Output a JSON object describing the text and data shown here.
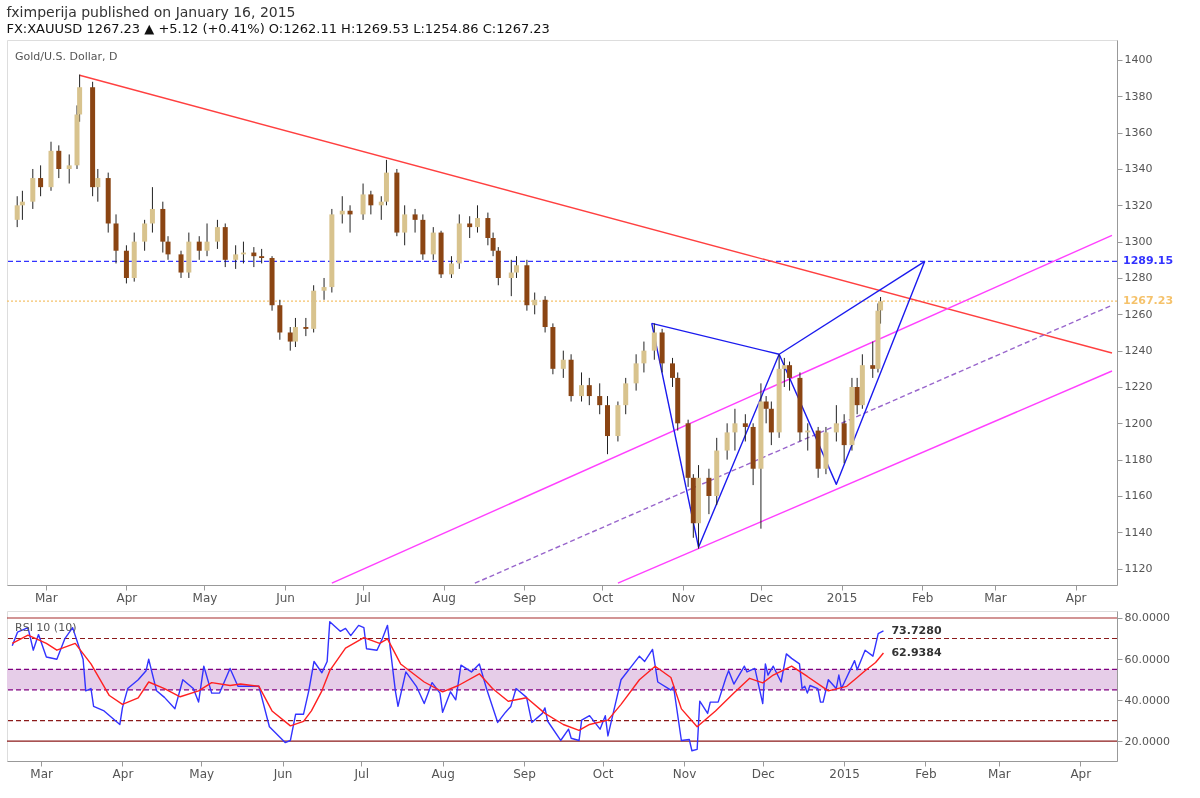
{
  "chart_data": [
    {
      "type": "candlestick",
      "title": "Gold/U.S. Dollar, D",
      "subtitle": "fximperija published on January 16, 2015",
      "annotations": [
        "FX:XAUUSD 1267.23 ▲ +5.12 (+0.41%) O:1262.11 H:1269.53 L:1254.86 C:1267.23"
      ],
      "x": [
        "2014-02-18",
        "2014-02-20",
        "2014-02-24",
        "2014-02-27",
        "2014-03-03",
        "2014-03-06",
        "2014-03-10",
        "2014-03-13",
        "2014-03-14",
        "2014-03-19",
        "2014-03-21",
        "2014-03-25",
        "2014-03-28",
        "2014-04-01",
        "2014-04-04",
        "2014-04-08",
        "2014-04-11",
        "2014-04-15",
        "2014-04-17",
        "2014-04-22",
        "2014-04-25",
        "2014-04-29",
        "2014-05-02",
        "2014-05-06",
        "2014-05-09",
        "2014-05-13",
        "2014-05-16",
        "2014-05-20",
        "2014-05-23",
        "2014-05-27",
        "2014-05-30",
        "2014-06-03",
        "2014-06-05",
        "2014-06-09",
        "2014-06-12",
        "2014-06-16",
        "2014-06-19",
        "2014-06-23",
        "2014-06-26",
        "2014-07-01",
        "2014-07-04",
        "2014-07-08",
        "2014-07-10",
        "2014-07-14",
        "2014-07-17",
        "2014-07-21",
        "2014-07-24",
        "2014-07-28",
        "2014-07-31",
        "2014-08-04",
        "2014-08-07",
        "2014-08-11",
        "2014-08-14",
        "2014-08-18",
        "2014-08-20",
        "2014-08-22",
        "2014-08-27",
        "2014-08-29",
        "2014-09-02",
        "2014-09-05",
        "2014-09-09",
        "2014-09-12",
        "2014-09-16",
        "2014-09-19",
        "2014-09-23",
        "2014-09-26",
        "2014-09-30",
        "2014-10-03",
        "2014-10-07",
        "2014-10-10",
        "2014-10-14",
        "2014-10-17",
        "2014-10-21",
        "2014-10-24",
        "2014-10-28",
        "2014-10-30",
        "2014-11-03",
        "2014-11-05",
        "2014-11-07",
        "2014-11-11",
        "2014-11-14",
        "2014-11-18",
        "2014-11-21",
        "2014-11-25",
        "2014-11-28",
        "2014-12-01",
        "2014-12-03",
        "2014-12-05",
        "2014-12-08",
        "2014-12-10",
        "2014-12-12",
        "2014-12-16",
        "2014-12-19",
        "2014-12-23",
        "2014-12-26",
        "2014-12-30",
        "2015-01-02",
        "2015-01-05",
        "2015-01-07",
        "2015-01-09",
        "2015-01-13",
        "2015-01-15",
        "2015-01-16"
      ],
      "ohlc": [
        [
          1312,
          1325,
          1308,
          1320
        ],
        [
          1320,
          1328,
          1312,
          1322
        ],
        [
          1322,
          1340,
          1318,
          1335
        ],
        [
          1335,
          1342,
          1325,
          1330
        ],
        [
          1330,
          1355,
          1328,
          1350
        ],
        [
          1350,
          1353,
          1335,
          1340
        ],
        [
          1340,
          1348,
          1332,
          1342
        ],
        [
          1342,
          1375,
          1340,
          1370
        ],
        [
          1370,
          1392,
          1366,
          1385
        ],
        [
          1385,
          1388,
          1325,
          1330
        ],
        [
          1330,
          1340,
          1322,
          1335
        ],
        [
          1335,
          1338,
          1305,
          1310
        ],
        [
          1310,
          1315,
          1288,
          1295
        ],
        [
          1295,
          1298,
          1277,
          1280
        ],
        [
          1280,
          1305,
          1278,
          1300
        ],
        [
          1300,
          1312,
          1295,
          1310
        ],
        [
          1310,
          1330,
          1305,
          1318
        ],
        [
          1318,
          1322,
          1294,
          1300
        ],
        [
          1300,
          1303,
          1290,
          1293
        ],
        [
          1293,
          1295,
          1280,
          1283
        ],
        [
          1283,
          1305,
          1280,
          1300
        ],
        [
          1300,
          1303,
          1290,
          1295
        ],
        [
          1295,
          1310,
          1292,
          1300
        ],
        [
          1300,
          1312,
          1296,
          1308
        ],
        [
          1308,
          1310,
          1286,
          1290
        ],
        [
          1290,
          1298,
          1285,
          1293
        ],
        [
          1293,
          1300,
          1288,
          1294
        ],
        [
          1294,
          1297,
          1286,
          1292
        ],
        [
          1292,
          1296,
          1288,
          1291
        ],
        [
          1291,
          1292,
          1262,
          1265
        ],
        [
          1265,
          1268,
          1246,
          1250
        ],
        [
          1250,
          1253,
          1240,
          1245
        ],
        [
          1245,
          1258,
          1242,
          1253
        ],
        [
          1253,
          1258,
          1248,
          1252
        ],
        [
          1252,
          1276,
          1250,
          1273
        ],
        [
          1273,
          1280,
          1268,
          1275
        ],
        [
          1275,
          1318,
          1272,
          1315
        ],
        [
          1315,
          1325,
          1310,
          1317
        ],
        [
          1317,
          1320,
          1305,
          1315
        ],
        [
          1315,
          1332,
          1312,
          1326
        ],
        [
          1326,
          1328,
          1315,
          1320
        ],
        [
          1320,
          1325,
          1312,
          1322
        ],
        [
          1322,
          1345,
          1320,
          1338
        ],
        [
          1338,
          1340,
          1303,
          1305
        ],
        [
          1305,
          1320,
          1298,
          1315
        ],
        [
          1315,
          1318,
          1305,
          1312
        ],
        [
          1312,
          1315,
          1290,
          1293
        ],
        [
          1293,
          1308,
          1290,
          1305
        ],
        [
          1305,
          1306,
          1280,
          1282
        ],
        [
          1282,
          1292,
          1280,
          1288
        ],
        [
          1288,
          1315,
          1285,
          1310
        ],
        [
          1310,
          1314,
          1302,
          1308
        ],
        [
          1308,
          1320,
          1305,
          1313
        ],
        [
          1313,
          1316,
          1298,
          1302
        ],
        [
          1302,
          1305,
          1292,
          1295
        ],
        [
          1295,
          1297,
          1276,
          1280
        ],
        [
          1280,
          1290,
          1270,
          1283
        ],
        [
          1283,
          1292,
          1280,
          1287
        ],
        [
          1287,
          1290,
          1262,
          1265
        ],
        [
          1265,
          1272,
          1260,
          1268
        ],
        [
          1268,
          1270,
          1250,
          1253
        ],
        [
          1253,
          1255,
          1227,
          1230
        ],
        [
          1230,
          1240,
          1225,
          1235
        ],
        [
          1235,
          1238,
          1212,
          1215
        ],
        [
          1215,
          1228,
          1212,
          1221
        ],
        [
          1221,
          1225,
          1210,
          1215
        ],
        [
          1215,
          1222,
          1205,
          1210
        ],
        [
          1210,
          1215,
          1183,
          1193
        ],
        [
          1193,
          1212,
          1190,
          1210
        ],
        [
          1210,
          1225,
          1205,
          1222
        ],
        [
          1222,
          1238,
          1218,
          1233
        ],
        [
          1233,
          1245,
          1228,
          1240
        ],
        [
          1240,
          1255,
          1235,
          1250
        ],
        [
          1250,
          1252,
          1228,
          1233
        ],
        [
          1233,
          1236,
          1220,
          1225
        ],
        [
          1225,
          1228,
          1196,
          1200
        ],
        [
          1200,
          1202,
          1165,
          1170
        ],
        [
          1170,
          1172,
          1137,
          1145
        ],
        [
          1145,
          1177,
          1131,
          1170
        ],
        [
          1170,
          1175,
          1150,
          1160
        ],
        [
          1160,
          1192,
          1155,
          1185
        ],
        [
          1185,
          1200,
          1180,
          1195
        ],
        [
          1195,
          1208,
          1185,
          1200
        ],
        [
          1200,
          1205,
          1190,
          1198
        ],
        [
          1198,
          1200,
          1166,
          1175
        ],
        [
          1175,
          1222,
          1142,
          1212
        ],
        [
          1212,
          1215,
          1200,
          1208
        ],
        [
          1208,
          1212,
          1188,
          1195
        ],
        [
          1195,
          1238,
          1192,
          1230
        ],
        [
          1230,
          1236,
          1220,
          1232
        ],
        [
          1232,
          1234,
          1218,
          1225
        ],
        [
          1225,
          1228,
          1190,
          1195
        ],
        [
          1195,
          1200,
          1185,
          1196
        ],
        [
          1196,
          1198,
          1170,
          1175
        ],
        [
          1175,
          1198,
          1172,
          1195
        ],
        [
          1195,
          1210,
          1190,
          1200
        ],
        [
          1200,
          1205,
          1178,
          1188
        ],
        [
          1188,
          1225,
          1185,
          1220
        ],
        [
          1220,
          1225,
          1205,
          1210
        ],
        [
          1210,
          1238,
          1208,
          1232
        ],
        [
          1232,
          1245,
          1225,
          1230
        ],
        [
          1230,
          1266,
          1228,
          1262
        ],
        [
          1262.11,
          1269.53,
          1254.86,
          1267.23
        ]
      ],
      "colors": [
        "#d8c38e",
        "#d8c38e",
        "#d8c38e",
        "#8b4513",
        "#d8c38e",
        "#8b4513",
        "#d8c38e",
        "#d8c38e",
        "#d8c38e",
        "#8b4513",
        "#d8c38e",
        "#8b4513",
        "#8b4513",
        "#8b4513",
        "#d8c38e",
        "#d8c38e",
        "#d8c38e",
        "#8b4513",
        "#8b4513",
        "#8b4513",
        "#d8c38e",
        "#8b4513",
        "#d8c38e",
        "#d8c38e",
        "#8b4513",
        "#d8c38e",
        "#d8c38e",
        "#8b4513",
        "#8b4513",
        "#8b4513",
        "#8b4513",
        "#8b4513",
        "#d8c38e",
        "#8b4513",
        "#d8c38e",
        "#d8c38e",
        "#d8c38e",
        "#d8c38e",
        "#8b4513",
        "#d8c38e",
        "#8b4513",
        "#d8c38e",
        "#d8c38e",
        "#8b4513",
        "#d8c38e",
        "#8b4513",
        "#8b4513",
        "#d8c38e",
        "#8b4513",
        "#d8c38e",
        "#d8c38e",
        "#8b4513",
        "#d8c38e",
        "#8b4513",
        "#8b4513",
        "#8b4513",
        "#d8c38e",
        "#d8c38e",
        "#8b4513",
        "#d8c38e",
        "#8b4513",
        "#8b4513",
        "#d8c38e",
        "#8b4513",
        "#d8c38e",
        "#8b4513",
        "#8b4513",
        "#8b4513",
        "#d8c38e",
        "#d8c38e",
        "#d8c38e",
        "#d8c38e",
        "#d8c38e",
        "#8b4513",
        "#8b4513",
        "#8b4513",
        "#8b4513",
        "#8b4513",
        "#d8c38e",
        "#8b4513",
        "#d8c38e",
        "#d8c38e",
        "#d8c38e",
        "#8b4513",
        "#8b4513",
        "#d8c38e",
        "#8b4513",
        "#8b4513",
        "#d8c38e",
        "#d8c38e",
        "#8b4513",
        "#8b4513",
        "#d8c38e",
        "#8b4513",
        "#d8c38e",
        "#d8c38e",
        "#8b4513",
        "#d8c38e",
        "#8b4513",
        "#d8c38e",
        "#8b4513",
        "#d8c38e",
        "#d8c38e"
      ],
      "series": [
        {
          "type": "line",
          "color": "#ff4040",
          "x": [
            "2014-03-14",
            "2015-04-15"
          ],
          "values": [
            1391.6,
            1238.7
          ]
        },
        {
          "type": "line",
          "color": "#ff40ff",
          "x": [
            "2014-06-19",
            "2015-04-15"
          ],
          "values": [
            1112,
            1303.5
          ]
        },
        {
          "type": "line",
          "color": "#9966cc",
          "line_style": "dashed",
          "x": [
            "2014-08-13",
            "2015-04-15"
          ],
          "values": [
            1112,
            1265
          ]
        },
        {
          "type": "line",
          "color": "#ff40ff",
          "x": [
            "2014-10-07",
            "2015-04-15"
          ],
          "values": [
            1112,
            1228.8
          ]
        },
        {
          "type": "line",
          "color": "#1a1aee",
          "x": [
            "2014-10-20",
            "2014-11-07",
            "2014-12-08"
          ],
          "values": [
            1255,
            1131.8,
            1238
          ]
        },
        {
          "type": "line",
          "color": "#1a1aee",
          "x": [
            "2014-10-20",
            "2014-12-08"
          ],
          "values": [
            1255,
            1238
          ]
        },
        {
          "type": "line",
          "color": "#1a1aee",
          "x": [
            "2014-12-08",
            "2014-12-30",
            "2015-02-02"
          ],
          "values": [
            1238,
            1166.4,
            1289.15
          ]
        },
        {
          "type": "line",
          "color": "#1a1aee",
          "x": [
            "2014-12-08",
            "2015-02-02"
          ],
          "values": [
            1238,
            1289.15
          ]
        }
      ],
      "ref_lines": [
        {
          "axis": "y",
          "value": 1289.15,
          "label": "1289.15",
          "color": "#3333ff",
          "line_style": "dashed"
        },
        {
          "axis": "y",
          "value": 1267.23,
          "label": "1267.23",
          "color": "#f5c26b",
          "line_style": "dotted"
        }
      ],
      "xlim": [
        "2014-02-16",
        "2015-04-15"
      ],
      "ylim": [
        1111,
        1411
      ],
      "xticks": [
        {
          "value": "2014-03-01",
          "label": "Mar"
        },
        {
          "value": "2014-04-01",
          "label": "Apr"
        },
        {
          "value": "2014-05-01",
          "label": "May"
        },
        {
          "value": "2014-06-01",
          "label": "Jun"
        },
        {
          "value": "2014-07-01",
          "label": "Jul"
        },
        {
          "value": "2014-08-01",
          "label": "Aug"
        },
        {
          "value": "2014-09-01",
          "label": "Sep"
        },
        {
          "value": "2014-10-01",
          "label": "Oct"
        },
        {
          "value": "2014-11-01",
          "label": "Nov"
        },
        {
          "value": "2014-12-01",
          "label": "Dec"
        },
        {
          "value": "2015-01-01",
          "label": "2015"
        },
        {
          "value": "2015-02-01",
          "label": "Feb"
        },
        {
          "value": "2015-03-01",
          "label": "Mar"
        },
        {
          "value": "2015-04-01",
          "label": "Apr"
        }
      ],
      "yticks": [
        1120,
        1140,
        1160,
        1180,
        1200,
        1220,
        1240,
        1260,
        1280,
        1300,
        1320,
        1340,
        1360,
        1380,
        1400
      ]
    },
    {
      "type": "line",
      "title": "RSI 10 (10)",
      "series": [
        {
          "color": "#3333ff",
          "x": [
            "2014-02-18",
            "2014-02-20",
            "2014-02-24",
            "2014-02-26",
            "2014-02-28",
            "2014-03-03",
            "2014-03-07",
            "2014-03-10",
            "2014-03-13",
            "2014-03-17",
            "2014-03-18",
            "2014-03-20",
            "2014-03-21",
            "2014-03-25",
            "2014-03-31",
            "2014-04-01",
            "2014-04-03",
            "2014-04-07",
            "2014-04-10",
            "2014-04-11",
            "2014-04-14",
            "2014-04-17",
            "2014-04-21",
            "2014-04-24",
            "2014-04-28",
            "2014-04-30",
            "2014-05-02",
            "2014-05-05",
            "2014-05-08",
            "2014-05-12",
            "2014-05-15",
            "2014-05-20",
            "2014-05-23",
            "2014-05-27",
            "2014-06-02",
            "2014-06-04",
            "2014-06-06",
            "2014-06-09",
            "2014-06-11",
            "2014-06-13",
            "2014-06-16",
            "2014-06-18",
            "2014-06-19",
            "2014-06-23",
            "2014-06-25",
            "2014-06-27",
            "2014-06-30",
            "2014-07-02",
            "2014-07-03",
            "2014-07-07",
            "2014-07-09",
            "2014-07-11",
            "2014-07-14",
            "2014-07-15",
            "2014-07-18",
            "2014-07-22",
            "2014-07-25",
            "2014-07-28",
            "2014-07-31",
            "2014-08-01",
            "2014-08-04",
            "2014-08-06",
            "2014-08-08",
            "2014-08-12",
            "2014-08-15",
            "2014-08-18",
            "2014-08-22",
            "2014-08-25",
            "2014-08-27",
            "2014-08-29",
            "2014-09-02",
            "2014-09-04",
            "2014-09-08",
            "2014-09-09",
            "2014-09-10",
            "2014-09-15",
            "2014-09-18",
            "2014-09-19",
            "2014-09-22",
            "2014-09-23",
            "2014-09-26",
            "2014-09-30",
            "2014-10-02",
            "2014-10-03",
            "2014-10-06",
            "2014-10-08",
            "2014-10-13",
            "2014-10-15",
            "2014-10-17",
            "2014-10-20",
            "2014-10-22",
            "2014-10-27",
            "2014-10-28",
            "2014-10-31",
            "2014-11-03",
            "2014-11-04",
            "2014-11-06",
            "2014-11-07",
            "2014-11-10",
            "2014-11-11",
            "2014-11-14",
            "2014-11-17",
            "2014-11-18",
            "2014-11-20",
            "2014-11-24",
            "2014-11-25",
            "2014-11-28",
            "2014-12-01",
            "2014-12-02",
            "2014-12-03",
            "2014-12-05",
            "2014-12-08",
            "2014-12-10",
            "2014-12-12",
            "2014-12-15",
            "2014-12-16",
            "2014-12-17",
            "2014-12-18",
            "2014-12-19",
            "2014-12-22",
            "2014-12-23",
            "2014-12-24",
            "2014-12-26",
            "2014-12-29",
            "2014-12-30",
            "2014-12-31",
            "2015-01-05",
            "2015-01-06",
            "2015-01-09",
            "2015-01-12",
            "2015-01-14",
            "2015-01-16"
          ],
          "values": [
            66.5,
            73.1,
            75.3,
            64.3,
            71.9,
            61,
            59.9,
            69.8,
            75.3,
            59.9,
            44.5,
            45.6,
            36.9,
            34.7,
            28.1,
            36.3,
            45.6,
            49.9,
            54.3,
            59.9,
            44.5,
            41.3,
            35.8,
            49.9,
            45.6,
            39,
            56.5,
            43.4,
            43.4,
            55.4,
            46.7,
            46.7,
            46.7,
            27,
            19.3,
            20.3,
            33.1,
            33.1,
            44.5,
            58.8,
            53.3,
            58.8,
            78.2,
            73.5,
            74.9,
            71.4,
            76.4,
            75.3,
            65,
            64.3,
            69.8,
            76.4,
            44.5,
            36.9,
            53.7,
            46.7,
            38.3,
            48.5,
            43.4,
            34,
            44,
            40.1,
            57,
            53.7,
            57.6,
            44.5,
            29.1,
            34.1,
            36.9,
            45.6,
            41.3,
            29.1,
            33.5,
            36.2,
            29.8,
            20.3,
            25.8,
            21.4,
            20.3,
            30.2,
            32.4,
            25.8,
            32.4,
            22.5,
            39,
            49.9,
            58.1,
            61.4,
            58.8,
            64.7,
            48.8,
            44.8,
            46.7,
            20.3,
            20.8,
            15.3,
            16,
            39.5,
            33.5,
            39,
            39,
            51,
            54.3,
            47.8,
            56.5,
            53.7,
            55.4,
            38.3,
            57.6,
            52.2,
            56.5,
            48.8,
            62.5,
            60.3,
            57.6,
            45.6,
            46.7,
            43.4,
            47.1,
            45.6,
            39,
            39,
            49.9,
            45.6,
            52.2,
            45.6,
            59.2,
            54.8,
            64.3,
            61.4,
            72.4,
            73.728
          ]
        },
        {
          "color": "#ff2020",
          "x": [
            "2014-02-18",
            "2014-02-24",
            "2014-03-03",
            "2014-03-07",
            "2014-03-14",
            "2014-03-20",
            "2014-03-27",
            "2014-04-01",
            "2014-04-07",
            "2014-04-11",
            "2014-04-17",
            "2014-04-23",
            "2014-04-30",
            "2014-05-05",
            "2014-05-12",
            "2014-05-16",
            "2014-05-23",
            "2014-05-28",
            "2014-06-04",
            "2014-06-09",
            "2014-06-12",
            "2014-06-16",
            "2014-06-19",
            "2014-06-25",
            "2014-07-02",
            "2014-07-08",
            "2014-07-11",
            "2014-07-16",
            "2014-07-25",
            "2014-08-01",
            "2014-08-07",
            "2014-08-15",
            "2014-08-20",
            "2014-08-26",
            "2014-09-02",
            "2014-09-09",
            "2014-09-16",
            "2014-09-22",
            "2014-09-26",
            "2014-10-03",
            "2014-10-08",
            "2014-10-15",
            "2014-10-21",
            "2014-10-27",
            "2014-10-31",
            "2014-11-06",
            "2014-11-13",
            "2014-11-20",
            "2014-11-26",
            "2014-12-01",
            "2014-12-05",
            "2014-12-12",
            "2014-12-18",
            "2014-12-26",
            "2015-01-02",
            "2015-01-06",
            "2015-01-09",
            "2015-01-13",
            "2015-01-16"
          ],
          "values": [
            67.6,
            71.6,
            67.6,
            64.3,
            67.6,
            57.6,
            42.2,
            37.9,
            41.1,
            48.8,
            45.6,
            41.6,
            44.5,
            48.5,
            47.1,
            47.8,
            46.7,
            34.7,
            27.4,
            29.6,
            34.7,
            44.5,
            54.3,
            65.3,
            70.4,
            67.6,
            69.8,
            57.6,
            48.8,
            44,
            47.1,
            52.8,
            45.6,
            39.4,
            41.1,
            33.5,
            28.1,
            25.2,
            28.1,
            30.2,
            37.9,
            49.9,
            56.5,
            51,
            35.7,
            27,
            34.7,
            43.4,
            50.6,
            48.4,
            52.2,
            56.5,
            51.5,
            44.5,
            46.7,
            51,
            54.3,
            58.3,
            62.9384
          ]
        }
      ],
      "annotations": [
        {
          "text": "73.7280",
          "x": "2015-01-16",
          "y": 73.728
        },
        {
          "text": "62.9384",
          "x": "2015-01-16",
          "y": 62.9384
        }
      ],
      "ref_lines": [
        {
          "axis": "y",
          "value": 80,
          "label": null,
          "color": "#a52a2a",
          "line_style": "solid"
        },
        {
          "axis": "y",
          "value": 70,
          "label": null,
          "color": "#8b1a1a",
          "line_style": "dashed"
        },
        {
          "axis": "y",
          "value": 55,
          "label": null,
          "color": "#800080",
          "line_style": "dashed"
        },
        {
          "axis": "y",
          "value": 45,
          "label": null,
          "color": "#800080",
          "line_style": "dashed"
        },
        {
          "axis": "y",
          "value": 30,
          "label": null,
          "color": "#8b1a1a",
          "line_style": "dashed"
        },
        {
          "axis": "y",
          "value": 20,
          "label": null,
          "color": "#8b1a1a",
          "line_style": "solid"
        }
      ],
      "bands": [
        {
          "axis": "y",
          "from": 45,
          "to": 55,
          "label": null,
          "color": "#e6cde8"
        }
      ],
      "xlim": [
        "2014-02-16",
        "2015-04-15"
      ],
      "ylim": [
        10.3,
        83.4
      ],
      "xticks": [
        {
          "value": "2014-03-01",
          "label": "Mar"
        },
        {
          "value": "2014-04-01",
          "label": "Apr"
        },
        {
          "value": "2014-05-01",
          "label": "May"
        },
        {
          "value": "2014-06-01",
          "label": "Jun"
        },
        {
          "value": "2014-07-01",
          "label": "Jul"
        },
        {
          "value": "2014-08-01",
          "label": "Aug"
        },
        {
          "value": "2014-09-01",
          "label": "Sep"
        },
        {
          "value": "2014-10-01",
          "label": "Oct"
        },
        {
          "value": "2014-11-01",
          "label": "Nov"
        },
        {
          "value": "2014-12-01",
          "label": "Dec"
        },
        {
          "value": "2015-01-01",
          "label": "2015"
        },
        {
          "value": "2015-02-01",
          "label": "Feb"
        },
        {
          "value": "2015-03-01",
          "label": "Mar"
        },
        {
          "value": "2015-04-01",
          "label": "Apr"
        }
      ],
      "yticks": [
        {
          "value": 20,
          "label": "20.0000"
        },
        {
          "value": 40,
          "label": "40.0000"
        },
        {
          "value": 60,
          "label": "60.0000"
        },
        {
          "value": 80,
          "label": "80.0000"
        }
      ]
    }
  ]
}
